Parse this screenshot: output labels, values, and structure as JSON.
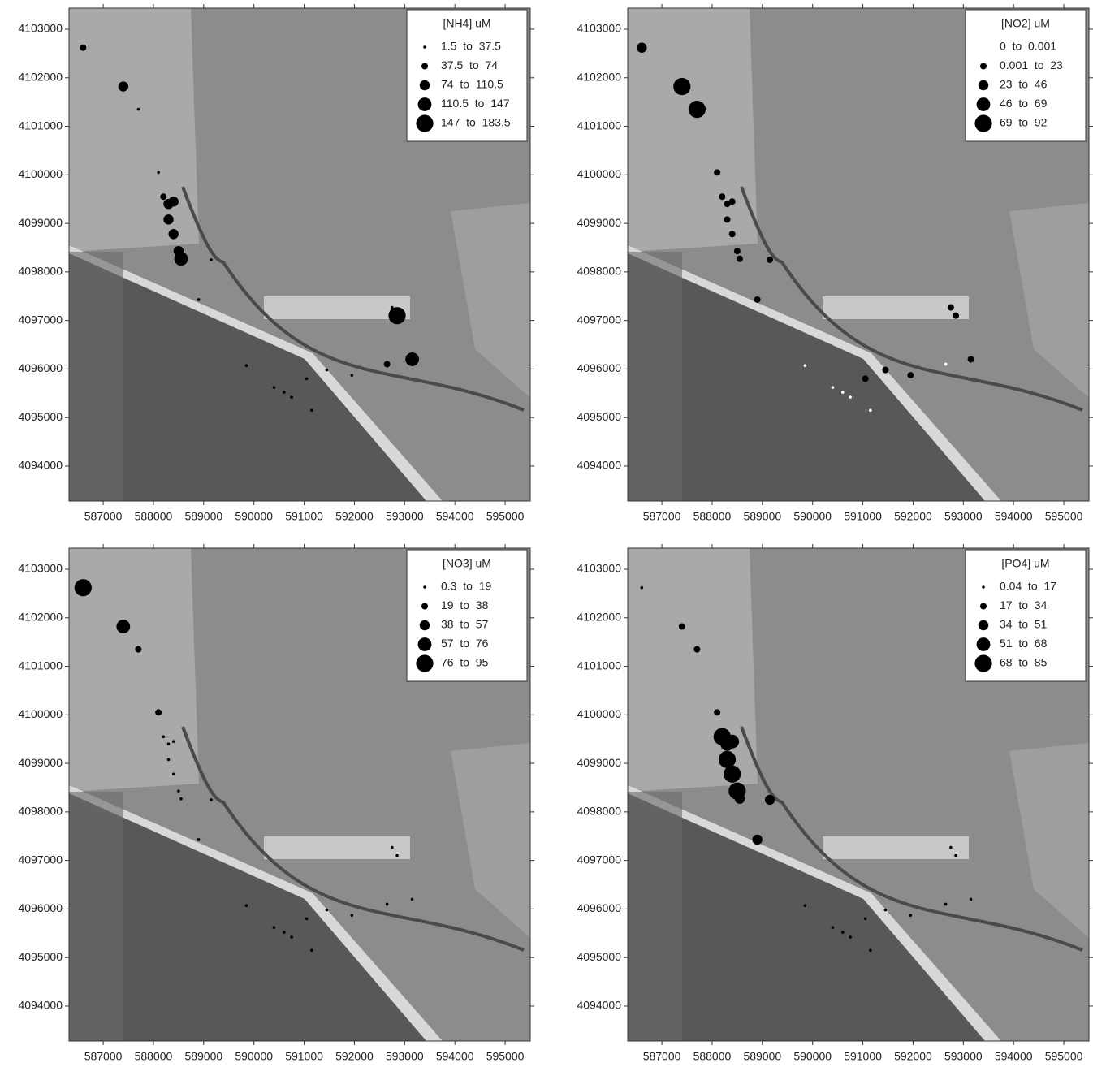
{
  "chart_data": [
    {
      "type": "scatter",
      "title": "[NH4] uM",
      "x": [
        586600,
        587400,
        587700,
        588100,
        588200,
        588300,
        588400,
        588300,
        588400,
        588500,
        588550,
        589150,
        588900,
        592850,
        593150,
        592650,
        591950,
        591450,
        591050,
        590400,
        590600,
        590750,
        591150,
        589850,
        592750
      ],
      "y": [
        4102620,
        4101820,
        4101350,
        4100050,
        4099550,
        4099400,
        4099450,
        4099080,
        4098780,
        4098430,
        4098270,
        4098250,
        4097430,
        4097100,
        4096200,
        4096100,
        4095870,
        4095980,
        4095800,
        4095620,
        4095520,
        4095420,
        4095150,
        4096070,
        4097270
      ],
      "values": [
        55,
        92,
        20,
        20,
        55,
        92,
        92,
        92,
        92,
        110.5,
        128,
        20,
        20,
        165,
        128,
        55,
        20,
        20,
        20,
        20,
        20,
        20,
        20,
        20,
        20
      ],
      "size_bins": [
        1.5,
        37.5,
        74,
        110.5,
        147,
        183.5
      ],
      "legend_labels": [
        "1.5  to  37.5",
        "37.5  to  74",
        "74  to  110.5",
        "110.5  to  147",
        "147  to  183.5"
      ],
      "class_colors": [
        "#000000",
        "#000000",
        "#000000",
        "#000000",
        "#000000"
      ],
      "xlim": [
        586320,
        595500
      ],
      "ylim": [
        4093280,
        4103435
      ],
      "xticks": [
        587000,
        588000,
        589000,
        590000,
        591000,
        592000,
        593000,
        594000,
        595000
      ],
      "yticks": [
        4094000,
        4095000,
        4096000,
        4097000,
        4098000,
        4099000,
        4100000,
        4101000,
        4102000,
        4103000
      ]
    },
    {
      "type": "scatter",
      "title": "[NO2] uM",
      "x": [
        586600,
        587400,
        587700,
        588100,
        588200,
        588300,
        588400,
        588300,
        588400,
        588500,
        588550,
        589150,
        588900,
        592850,
        593150,
        592650,
        591950,
        591450,
        591050,
        590400,
        590600,
        590750,
        591150,
        589850,
        592750
      ],
      "y": [
        4102620,
        4101820,
        4101350,
        4100050,
        4099550,
        4099400,
        4099450,
        4099080,
        4098780,
        4098430,
        4098270,
        4098250,
        4097430,
        4097100,
        4096200,
        4096100,
        4095870,
        4095980,
        4095800,
        4095620,
        4095520,
        4095420,
        4095150,
        4096070,
        4097270
      ],
      "values": [
        35,
        80,
        80,
        12,
        12,
        12,
        12,
        12,
        12,
        12,
        12,
        12,
        12,
        12,
        12,
        0.0005,
        12,
        12,
        12,
        0.0005,
        0.0005,
        0.0005,
        0.0005,
        0.0005,
        12
      ],
      "size_bins": [
        0,
        0.001,
        23,
        46,
        69,
        92
      ],
      "legend_labels": [
        "0  to  0.001",
        "0.001  to  23",
        "23  to  46",
        "46  to  69",
        "69  to  92"
      ],
      "class_colors": [
        "#ffffff",
        "#000000",
        "#000000",
        "#000000",
        "#000000"
      ],
      "xlim": [
        586320,
        595500
      ],
      "ylim": [
        4093280,
        4103435
      ],
      "xticks": [
        587000,
        588000,
        589000,
        590000,
        591000,
        592000,
        593000,
        594000,
        595000
      ],
      "yticks": [
        4094000,
        4095000,
        4096000,
        4097000,
        4098000,
        4099000,
        4100000,
        4101000,
        4102000,
        4103000
      ]
    },
    {
      "type": "scatter",
      "title": "[NO3] uM",
      "x": [
        586600,
        587400,
        587700,
        588100,
        588200,
        588300,
        588400,
        588300,
        588400,
        588500,
        588550,
        589150,
        588900,
        592850,
        593150,
        592650,
        591950,
        591450,
        591050,
        590400,
        590600,
        590750,
        591150,
        589850,
        592750
      ],
      "y": [
        4102620,
        4101820,
        4101350,
        4100050,
        4099550,
        4099400,
        4099450,
        4099080,
        4098780,
        4098430,
        4098270,
        4098250,
        4097430,
        4097100,
        4096200,
        4096100,
        4095870,
        4095980,
        4095800,
        4095620,
        4095520,
        4095420,
        4095150,
        4096070,
        4097270
      ],
      "values": [
        85,
        66,
        28,
        28,
        10,
        10,
        10,
        10,
        10,
        10,
        10,
        10,
        10,
        10,
        10,
        10,
        10,
        10,
        10,
        10,
        10,
        10,
        10,
        10,
        10
      ],
      "size_bins": [
        0.3,
        19,
        38,
        57,
        76,
        95
      ],
      "legend_labels": [
        "0.3  to  19",
        "19  to  38",
        "38  to  57",
        "57  to  76",
        "76  to  95"
      ],
      "class_colors": [
        "#000000",
        "#000000",
        "#000000",
        "#000000",
        "#000000"
      ],
      "xlim": [
        586320,
        595500
      ],
      "ylim": [
        4093280,
        4103435
      ],
      "xticks": [
        587000,
        588000,
        589000,
        590000,
        591000,
        592000,
        593000,
        594000,
        595000
      ],
      "yticks": [
        4094000,
        4095000,
        4096000,
        4097000,
        4098000,
        4099000,
        4100000,
        4101000,
        4102000,
        4103000
      ]
    },
    {
      "type": "scatter",
      "title": "[PO4] uM",
      "x": [
        586600,
        587400,
        587700,
        588100,
        588200,
        588300,
        588400,
        588300,
        588400,
        588500,
        588550,
        589150,
        588900,
        592850,
        593150,
        592650,
        591950,
        591450,
        591050,
        590400,
        590600,
        590750,
        591150,
        589850,
        592750
      ],
      "y": [
        4102620,
        4101820,
        4101350,
        4100050,
        4099550,
        4099400,
        4099450,
        4099080,
        4098780,
        4098430,
        4098270,
        4098250,
        4097430,
        4097100,
        4096200,
        4096100,
        4095870,
        4095980,
        4095800,
        4095620,
        4095520,
        4095420,
        4095150,
        4096070,
        4097270
      ],
      "values": [
        8,
        25,
        25,
        25,
        76,
        60,
        60,
        76,
        76,
        76,
        42,
        42,
        42,
        8,
        8,
        8,
        8,
        8,
        8,
        8,
        8,
        8,
        8,
        8,
        8
      ],
      "size_bins": [
        0.04,
        17,
        34,
        51,
        68,
        85
      ],
      "legend_labels": [
        "0.04  to  17",
        "17  to  34",
        "34  to  51",
        "51  to  68",
        "68  to  85"
      ],
      "class_colors": [
        "#000000",
        "#000000",
        "#000000",
        "#000000",
        "#000000"
      ],
      "xlim": [
        586320,
        595500
      ],
      "ylim": [
        4093280,
        4103435
      ],
      "xticks": [
        587000,
        588000,
        589000,
        590000,
        591000,
        592000,
        593000,
        594000,
        595000
      ],
      "yticks": [
        4094000,
        4095000,
        4096000,
        4097000,
        4098000,
        4099000,
        4100000,
        4101000,
        4102000,
        4103000
      ]
    }
  ]
}
